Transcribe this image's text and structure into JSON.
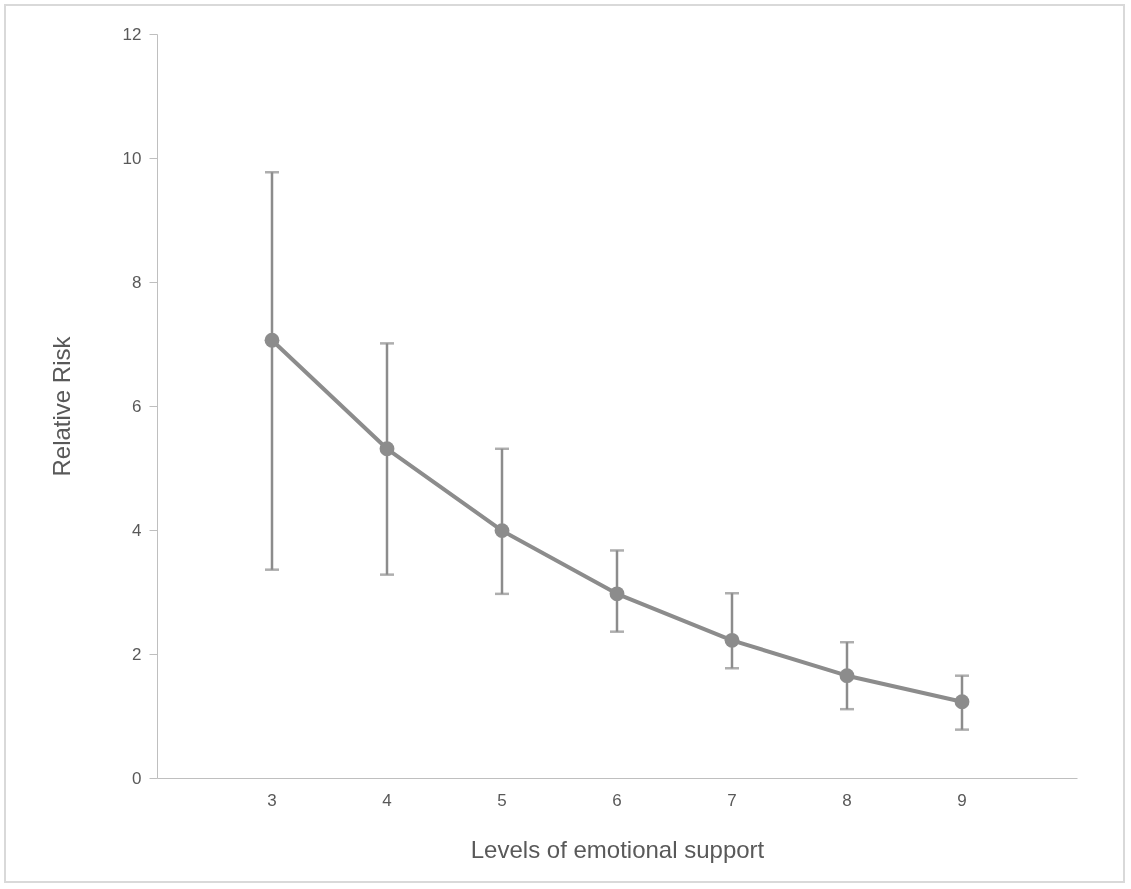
{
  "chart_data": {
    "type": "line",
    "xlabel": "Levels of emotional support",
    "ylabel": "Relative Risk",
    "categories": [
      "3",
      "4",
      "5",
      "6",
      "7",
      "8",
      "9"
    ],
    "series": [
      {
        "color": "#8c8c8c",
        "values": [
          7.06,
          5.31,
          3.99,
          2.97,
          2.22,
          1.65,
          1.23
        ],
        "errors": [
          [
            3.36,
            9.77
          ],
          [
            3.28,
            7.01
          ],
          [
            2.97,
            5.31
          ],
          [
            2.36,
            3.67
          ],
          [
            1.77,
            2.98
          ],
          [
            1.11,
            2.19
          ],
          [
            0.78,
            1.65
          ]
        ]
      }
    ],
    "ylim": [
      0,
      12
    ],
    "yticks": [
      0,
      2,
      4,
      6,
      8,
      10,
      12
    ],
    "marker": "circle",
    "line_style": "solid"
  }
}
